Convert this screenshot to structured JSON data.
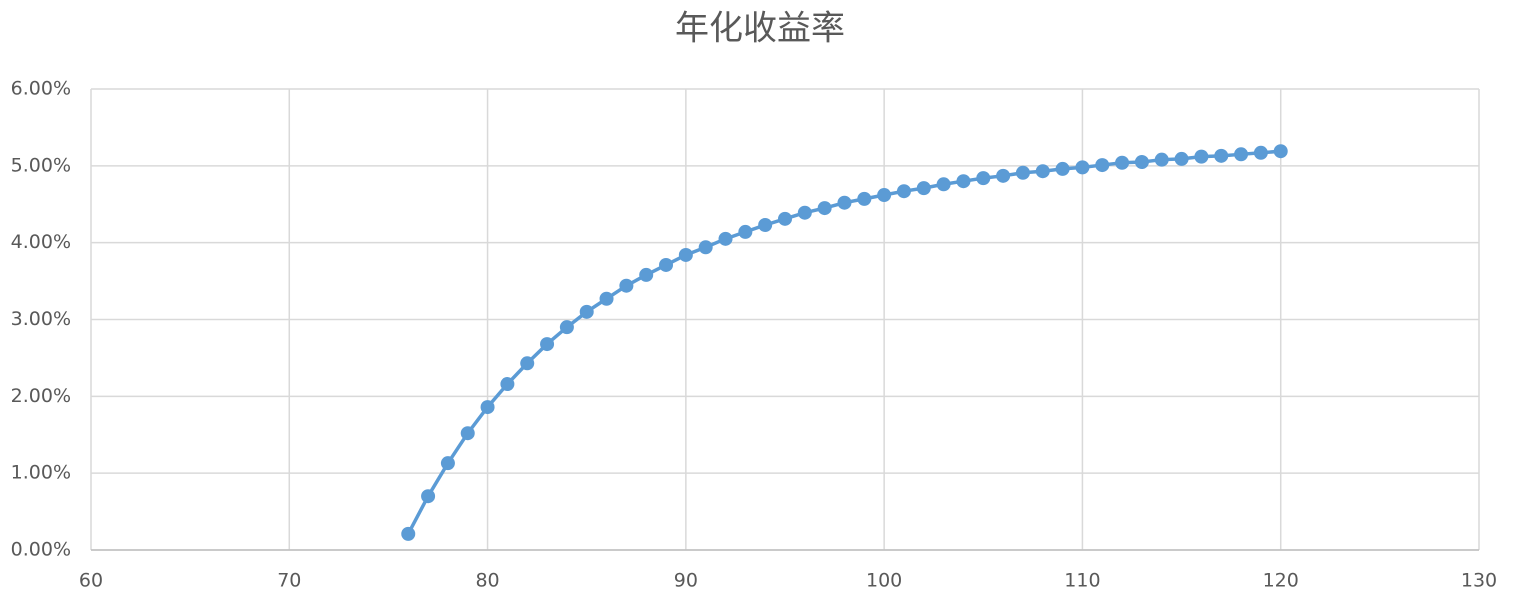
{
  "chart_data": {
    "type": "line",
    "title": "年化收益率",
    "x": [
      76,
      77,
      78,
      79,
      80,
      81,
      82,
      83,
      84,
      85,
      86,
      87,
      88,
      89,
      90,
      91,
      92,
      93,
      94,
      95,
      96,
      97,
      98,
      99,
      100,
      101,
      102,
      103,
      104,
      105,
      106,
      107,
      108,
      109,
      110,
      111,
      112,
      113,
      114,
      115,
      116,
      117,
      118,
      119,
      120
    ],
    "series": [
      {
        "color": "#5b9bd5",
        "values": [
          0.21,
          0.7,
          1.13,
          1.52,
          1.86,
          2.16,
          2.43,
          2.68,
          2.9,
          3.1,
          3.27,
          3.44,
          3.58,
          3.71,
          3.84,
          3.94,
          4.05,
          4.14,
          4.23,
          4.31,
          4.39,
          4.45,
          4.52,
          4.57,
          4.62,
          4.67,
          4.71,
          4.76,
          4.8,
          4.84,
          4.87,
          4.91,
          4.93,
          4.96,
          4.98,
          5.01,
          5.04,
          5.05,
          5.08,
          5.09,
          5.12,
          5.13,
          5.15,
          5.17,
          5.19
        ]
      }
    ],
    "xlim": [
      60,
      130
    ],
    "xticks": [
      60,
      70,
      80,
      90,
      100,
      110,
      120,
      130
    ],
    "ylim": [
      0,
      6
    ],
    "yticks": [
      {
        "value": 0,
        "label": "0.00%"
      },
      {
        "value": 1,
        "label": "1.00%"
      },
      {
        "value": 2,
        "label": "2.00%"
      },
      {
        "value": 3,
        "label": "3.00%"
      },
      {
        "value": 4,
        "label": "4.00%"
      },
      {
        "value": 5,
        "label": "5.00%"
      },
      {
        "value": 6,
        "label": "6.00%"
      }
    ],
    "grid": true
  }
}
